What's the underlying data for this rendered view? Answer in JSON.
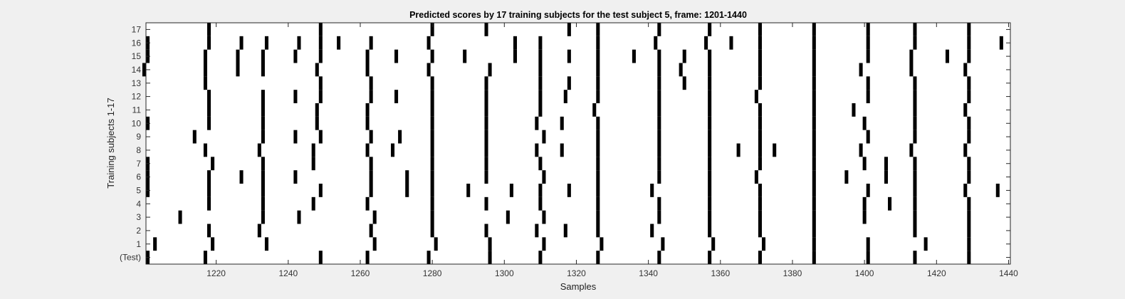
{
  "chart_data": {
    "type": "heatmap",
    "title": "Predicted scores by 17 training subjects for the test subject 5, frame: 1201-1440",
    "xlabel": "Samples",
    "ylabel": "Training subjects 1-17",
    "xlim": [
      1200.5,
      1440.5
    ],
    "x_ticks": [
      1220,
      1240,
      1260,
      1280,
      1300,
      1320,
      1340,
      1360,
      1380,
      1400,
      1420,
      1440
    ],
    "rows": [
      "(Test)",
      "1",
      "2",
      "3",
      "4",
      "5",
      "6",
      "7",
      "8",
      "9",
      "10",
      "11",
      "12",
      "13",
      "14",
      "15",
      "16",
      "17"
    ],
    "colors": {
      "background": "#ffffff",
      "mark": "#000000",
      "figure_bg": "#f0f0f0"
    },
    "marks": [
      [
        1201,
        1217,
        1249,
        1262,
        1279,
        1296,
        1310,
        1326,
        1343,
        1357,
        1371,
        1386,
        1401,
        1414,
        1429
      ],
      [
        1203,
        1219,
        1234,
        1264,
        1281,
        1296,
        1311,
        1327,
        1344,
        1358,
        1372,
        1386,
        1401,
        1417,
        1429
      ],
      [
        1218,
        1232,
        1263,
        1280,
        1295,
        1309,
        1317,
        1326,
        1341,
        1357,
        1371,
        1386,
        1414,
        1429
      ],
      [
        1210,
        1233,
        1243,
        1264,
        1280,
        1301,
        1311,
        1326,
        1343,
        1357,
        1371,
        1386,
        1400,
        1414,
        1429
      ],
      [
        1218,
        1233,
        1247,
        1262,
        1280,
        1295,
        1310,
        1326,
        1343,
        1357,
        1371,
        1386,
        1400,
        1407,
        1414,
        1429
      ],
      [
        1201,
        1218,
        1233,
        1249,
        1263,
        1273,
        1280,
        1290,
        1302,
        1310,
        1318,
        1326,
        1341,
        1357,
        1371,
        1386,
        1401,
        1414,
        1428,
        1437
      ],
      [
        1201,
        1218,
        1227,
        1233,
        1242,
        1263,
        1273,
        1280,
        1295,
        1311,
        1326,
        1343,
        1357,
        1370,
        1386,
        1395,
        1406,
        1414,
        1429
      ],
      [
        1201,
        1219,
        1233,
        1247,
        1263,
        1280,
        1295,
        1310,
        1326,
        1343,
        1357,
        1371,
        1386,
        1400,
        1406,
        1414,
        1429
      ],
      [
        1217,
        1232,
        1247,
        1262,
        1269,
        1280,
        1295,
        1309,
        1316,
        1326,
        1343,
        1357,
        1365,
        1371,
        1375,
        1386,
        1399,
        1413,
        1428
      ],
      [
        1214,
        1233,
        1242,
        1249,
        1263,
        1271,
        1280,
        1295,
        1311,
        1326,
        1343,
        1357,
        1371,
        1386,
        1401,
        1414,
        1429
      ],
      [
        1201,
        1218,
        1233,
        1248,
        1262,
        1280,
        1295,
        1309,
        1316,
        1326,
        1343,
        1357,
        1371,
        1386,
        1400,
        1414,
        1429
      ],
      [
        1218,
        1233,
        1248,
        1262,
        1280,
        1295,
        1310,
        1325,
        1343,
        1357,
        1371,
        1386,
        1397,
        1414,
        1428
      ],
      [
        1218,
        1233,
        1242,
        1249,
        1263,
        1270,
        1280,
        1295,
        1310,
        1317,
        1326,
        1343,
        1357,
        1370,
        1386,
        1401,
        1414,
        1429
      ],
      [
        1217,
        1249,
        1263,
        1280,
        1295,
        1310,
        1318,
        1326,
        1343,
        1350,
        1357,
        1371,
        1386,
        1401,
        1414,
        1429
      ],
      [
        1200,
        1217,
        1226,
        1233,
        1248,
        1262,
        1279,
        1296,
        1310,
        1326,
        1343,
        1349,
        1357,
        1371,
        1386,
        1399,
        1413,
        1428
      ],
      [
        1201,
        1217,
        1226,
        1233,
        1242,
        1249,
        1262,
        1270,
        1280,
        1289,
        1303,
        1310,
        1318,
        1326,
        1336,
        1343,
        1350,
        1357,
        1371,
        1386,
        1401,
        1413,
        1423,
        1429
      ],
      [
        1201,
        1218,
        1227,
        1234,
        1243,
        1249,
        1254,
        1263,
        1279,
        1303,
        1310,
        1326,
        1342,
        1356,
        1363,
        1371,
        1386,
        1401,
        1414,
        1429,
        1438
      ],
      [
        1218,
        1249,
        1280,
        1295,
        1318,
        1326,
        1343,
        1357,
        1371,
        1386,
        1401,
        1414,
        1429
      ]
    ]
  }
}
